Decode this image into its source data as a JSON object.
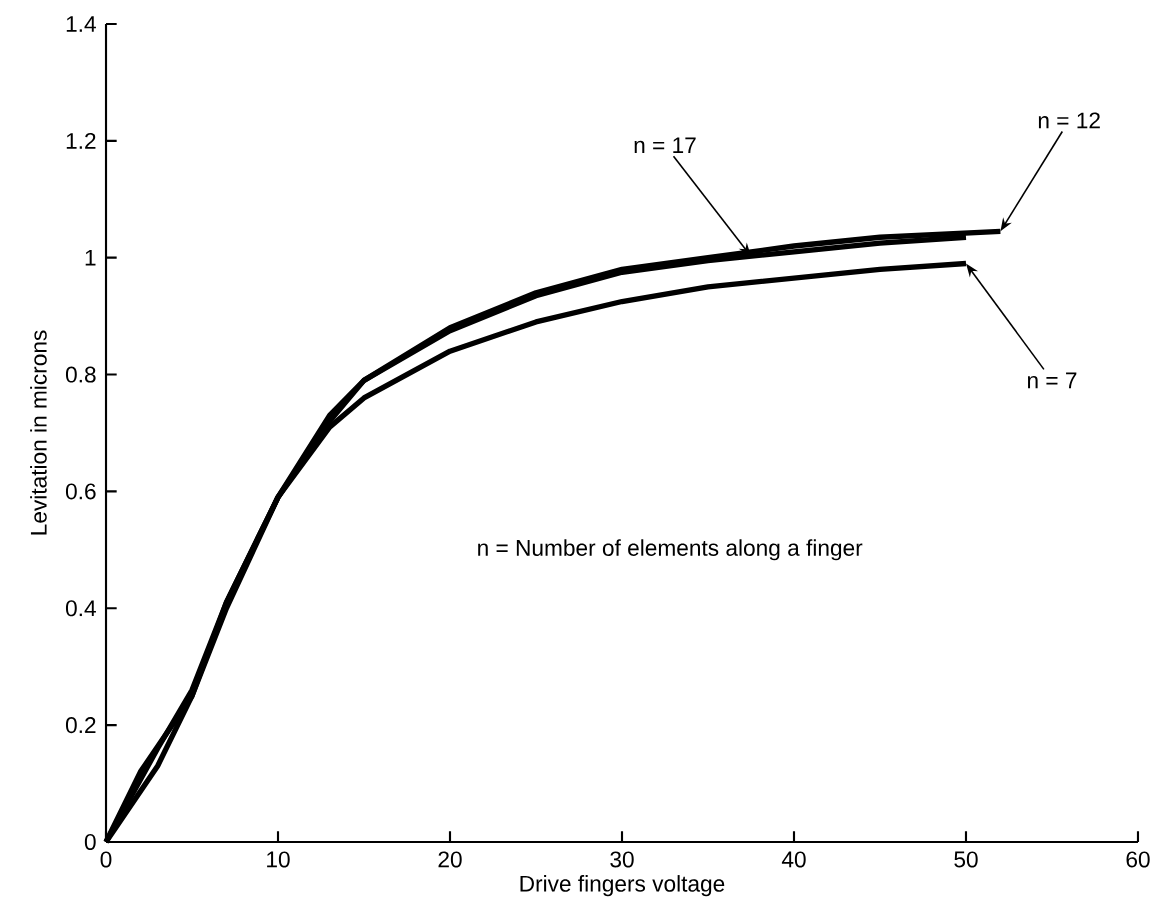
{
  "chart_data": {
    "type": "line",
    "xlabel": "Drive fingers voltage",
    "ylabel": "Levitation in microns",
    "xlim": [
      0,
      60
    ],
    "ylim": [
      0,
      1.4
    ],
    "xticks": [
      0,
      10,
      20,
      30,
      40,
      50,
      60
    ],
    "yticks": [
      0,
      0.2,
      0.4,
      0.6,
      0.8,
      1,
      1.2,
      1.4
    ],
    "annotations": [
      "n = Number of elements along a finger"
    ],
    "series": [
      {
        "name": "n = 17",
        "color": "#000000",
        "x": [
          0,
          2,
          5,
          7,
          10,
          13,
          15,
          20,
          25,
          30,
          35,
          40,
          45,
          50
        ],
        "values": [
          0,
          0.12,
          0.25,
          0.41,
          0.59,
          0.73,
          0.79,
          0.875,
          0.935,
          0.975,
          0.995,
          1.01,
          1.025,
          1.035
        ]
      },
      {
        "name": "n = 12",
        "color": "#000000",
        "x": [
          0,
          3,
          5,
          7,
          10,
          13,
          15,
          20,
          25,
          30,
          35,
          40,
          45,
          52
        ],
        "values": [
          0,
          0.16,
          0.26,
          0.41,
          0.59,
          0.72,
          0.79,
          0.88,
          0.94,
          0.98,
          1.0,
          1.02,
          1.035,
          1.045
        ]
      },
      {
        "name": "n = 7",
        "color": "#000000",
        "x": [
          0,
          3,
          5,
          7,
          10,
          13,
          15,
          20,
          25,
          30,
          35,
          40,
          45,
          50
        ],
        "values": [
          0,
          0.13,
          0.25,
          0.4,
          0.59,
          0.71,
          0.76,
          0.84,
          0.89,
          0.925,
          0.95,
          0.965,
          0.98,
          0.99
        ]
      }
    ],
    "grid": false,
    "marker": "none",
    "line_style": "solid"
  }
}
